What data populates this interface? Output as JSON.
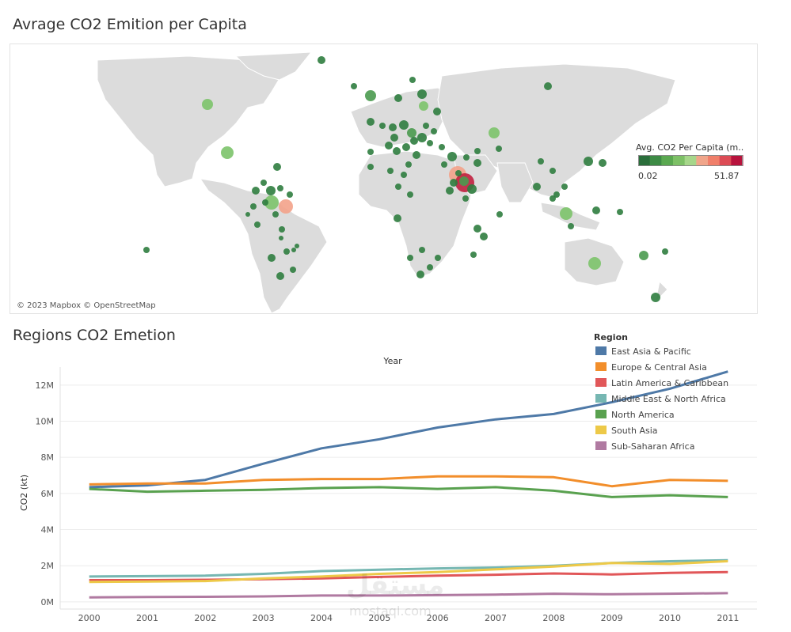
{
  "map_title": "Avrage CO2 Emition per Capita",
  "map_attribution": "© 2023 Mapbox © OpenStreetMap",
  "map_legend": {
    "title": "Avg. CO2 Per Capita (m..",
    "min": "0.02",
    "max": "51.87",
    "colors": [
      "#2a6e3b",
      "#3d8b45",
      "#5aa850",
      "#7dc066",
      "#a6d68a",
      "#f0a58a",
      "#f07f6a",
      "#dc4b55",
      "#b8133d"
    ]
  },
  "chart_title": "Regions CO2 Emetion",
  "chart_data": {
    "type": "line",
    "xlabel": "Year",
    "ylabel": "CO2 (kt)",
    "categories": [
      "2000",
      "2001",
      "2002",
      "2003",
      "2004",
      "2005",
      "2006",
      "2007",
      "2008",
      "2009",
      "2010",
      "2011"
    ],
    "y_ticks": [
      {
        "value": 0,
        "label": "0M"
      },
      {
        "value": 2,
        "label": "2M"
      },
      {
        "value": 4,
        "label": "4M"
      },
      {
        "value": 6,
        "label": "6M"
      },
      {
        "value": 8,
        "label": "8M"
      },
      {
        "value": 10,
        "label": "10M"
      },
      {
        "value": 12,
        "label": "12M"
      }
    ],
    "ylim": [
      -0.4,
      13
    ],
    "legend_title": "Region",
    "series": [
      {
        "name": "East Asia & Pacific",
        "color": "#4e79a7",
        "values": [
          6.35,
          6.45,
          6.75,
          7.65,
          8.5,
          9.0,
          9.65,
          10.1,
          10.4,
          11.05,
          11.8,
          12.75
        ]
      },
      {
        "name": "Europe & Central Asia",
        "color": "#f28e2b",
        "values": [
          6.5,
          6.55,
          6.55,
          6.75,
          6.8,
          6.8,
          6.95,
          6.95,
          6.9,
          6.4,
          6.75,
          6.7
        ]
      },
      {
        "name": "Latin America & Caribbean",
        "color": "#e15759",
        "values": [
          1.2,
          1.2,
          1.22,
          1.25,
          1.3,
          1.38,
          1.45,
          1.5,
          1.57,
          1.52,
          1.6,
          1.65
        ]
      },
      {
        "name": "Middle East & North Africa",
        "color": "#76b7b2",
        "values": [
          1.4,
          1.42,
          1.45,
          1.55,
          1.7,
          1.78,
          1.85,
          1.9,
          2.0,
          2.15,
          2.25,
          2.3
        ]
      },
      {
        "name": "North America",
        "color": "#59a14f",
        "values": [
          6.25,
          6.1,
          6.15,
          6.2,
          6.3,
          6.35,
          6.25,
          6.35,
          6.15,
          5.8,
          5.9,
          5.8
        ]
      },
      {
        "name": "South Asia",
        "color": "#edc948",
        "values": [
          1.1,
          1.12,
          1.15,
          1.3,
          1.4,
          1.55,
          1.65,
          1.8,
          1.95,
          2.15,
          2.1,
          2.25
        ]
      },
      {
        "name": "Sub-Saharan Africa",
        "color": "#b07aa1",
        "values": [
          0.25,
          0.27,
          0.28,
          0.3,
          0.35,
          0.35,
          0.37,
          0.4,
          0.45,
          0.42,
          0.45,
          0.48
        ]
      }
    ]
  },
  "watermark": {
    "main": "مستقل",
    "sub": "mostaql.com"
  }
}
